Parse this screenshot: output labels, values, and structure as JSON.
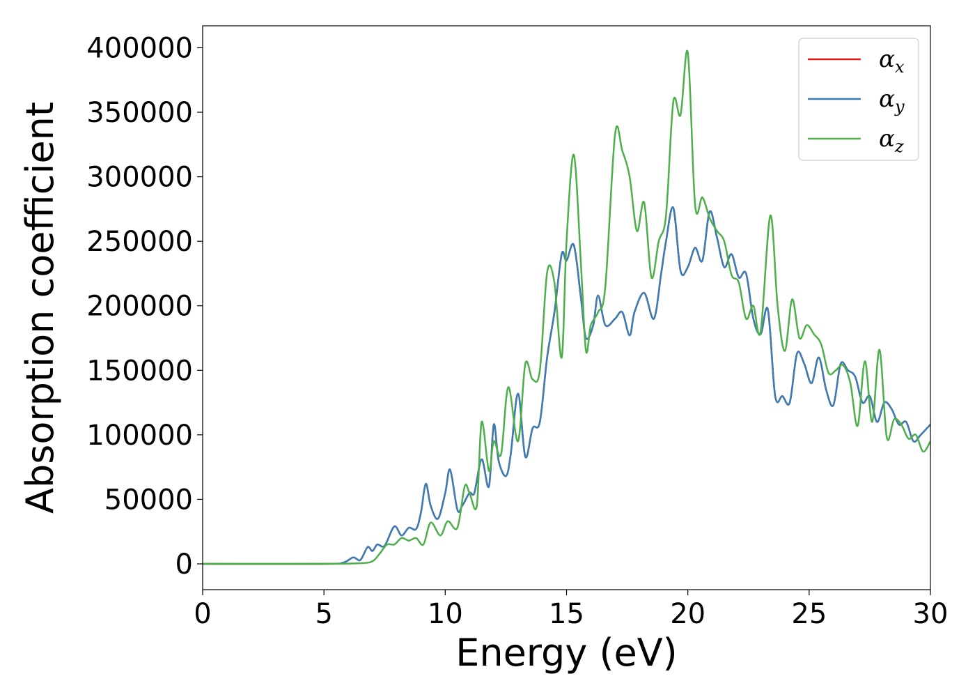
{
  "chart_data": {
    "type": "line",
    "title": "",
    "xlabel": "Energy (eV)",
    "ylabel": "Absorption coefficient",
    "xlim": [
      0,
      30
    ],
    "ylim": [
      -20000,
      417000
    ],
    "xticks": [
      0,
      5,
      10,
      15,
      20,
      25,
      30
    ],
    "yticks": [
      0,
      50000,
      100000,
      150000,
      200000,
      250000,
      300000,
      350000,
      400000
    ],
    "grid": false,
    "legend_position": "top-right",
    "series": [
      {
        "name": "α_x",
        "name_main": "α",
        "name_sub": "x",
        "color": "#e41a1c",
        "x": [
          0,
          5,
          5.8,
          6.2,
          6.5,
          6.8,
          7.0,
          7.2,
          7.5,
          7.9,
          8.2,
          8.5,
          8.8,
          9.0,
          9.2,
          9.4,
          9.7,
          10.0,
          10.2,
          10.5,
          10.7,
          11.0,
          11.2,
          11.5,
          11.8,
          12.0,
          12.2,
          12.5,
          12.7,
          13.0,
          13.3,
          13.6,
          13.9,
          14.2,
          14.5,
          14.8,
          15.0,
          15.3,
          15.6,
          15.8,
          16.1,
          16.3,
          16.6,
          17.0,
          17.3,
          17.6,
          17.8,
          18.2,
          18.6,
          18.9,
          19.1,
          19.4,
          19.7,
          20.0,
          20.3,
          20.6,
          20.9,
          21.2,
          21.5,
          21.8,
          22.1,
          22.4,
          22.7,
          23.0,
          23.3,
          23.6,
          23.9,
          24.2,
          24.5,
          24.8,
          25.1,
          25.4,
          25.7,
          26.0,
          26.3,
          26.6,
          26.9,
          27.2,
          27.5,
          27.8,
          28.1,
          28.4,
          28.7,
          29.0,
          29.3,
          29.6,
          30.0
        ],
        "values": [
          0,
          0,
          1000,
          5000,
          3000,
          13000,
          10000,
          15000,
          14000,
          29000,
          22000,
          28000,
          27000,
          40000,
          62000,
          45000,
          35000,
          55000,
          73000,
          42000,
          45000,
          55000,
          55000,
          81000,
          60000,
          108000,
          80000,
          68000,
          85000,
          132000,
          83000,
          105000,
          110000,
          160000,
          195000,
          240000,
          235000,
          247000,
          205000,
          175000,
          185000,
          208000,
          185000,
          190000,
          195000,
          177000,
          195000,
          210000,
          190000,
          225000,
          250000,
          276000,
          227000,
          230000,
          245000,
          235000,
          273000,
          253000,
          230000,
          240000,
          222000,
          225000,
          190000,
          178000,
          197000,
          130000,
          130000,
          125000,
          163000,
          155000,
          140000,
          160000,
          135000,
          123000,
          155000,
          150000,
          145000,
          125000,
          130000,
          110000,
          125000,
          120000,
          108000,
          110000,
          95000,
          100000,
          108000
        ]
      },
      {
        "name": "α_y",
        "name_main": "α",
        "name_sub": "y",
        "color": "#377eb8",
        "x": [
          0,
          5,
          5.8,
          6.2,
          6.5,
          6.8,
          7.0,
          7.2,
          7.5,
          7.9,
          8.2,
          8.5,
          8.8,
          9.0,
          9.2,
          9.4,
          9.7,
          10.0,
          10.2,
          10.5,
          10.7,
          11.0,
          11.2,
          11.5,
          11.8,
          12.0,
          12.2,
          12.5,
          12.7,
          13.0,
          13.3,
          13.6,
          13.9,
          14.2,
          14.5,
          14.8,
          15.0,
          15.3,
          15.6,
          15.8,
          16.1,
          16.3,
          16.6,
          17.0,
          17.3,
          17.6,
          17.8,
          18.2,
          18.6,
          18.9,
          19.1,
          19.4,
          19.7,
          20.0,
          20.3,
          20.6,
          20.9,
          21.2,
          21.5,
          21.8,
          22.1,
          22.4,
          22.7,
          23.0,
          23.3,
          23.6,
          23.9,
          24.2,
          24.5,
          24.8,
          25.1,
          25.4,
          25.7,
          26.0,
          26.3,
          26.6,
          26.9,
          27.2,
          27.5,
          27.8,
          28.1,
          28.4,
          28.7,
          29.0,
          29.3,
          29.6,
          30.0
        ],
        "values": [
          0,
          0,
          1000,
          5000,
          3000,
          13000,
          10000,
          15000,
          14000,
          29000,
          22000,
          28000,
          27000,
          40000,
          62000,
          45000,
          35000,
          55000,
          73000,
          42000,
          45000,
          55000,
          55000,
          81000,
          60000,
          108000,
          80000,
          68000,
          85000,
          132000,
          83000,
          105000,
          110000,
          160000,
          195000,
          240000,
          235000,
          247000,
          205000,
          175000,
          185000,
          208000,
          185000,
          190000,
          195000,
          177000,
          195000,
          210000,
          190000,
          225000,
          250000,
          276000,
          227000,
          230000,
          245000,
          235000,
          273000,
          253000,
          230000,
          240000,
          222000,
          225000,
          190000,
          178000,
          197000,
          130000,
          130000,
          125000,
          163000,
          155000,
          140000,
          160000,
          135000,
          123000,
          155000,
          150000,
          145000,
          125000,
          130000,
          110000,
          125000,
          120000,
          108000,
          110000,
          95000,
          100000,
          108000
        ]
      },
      {
        "name": "α_z",
        "name_main": "α",
        "name_sub": "z",
        "color": "#4daf4a",
        "x": [
          0,
          5,
          6.5,
          7.0,
          7.3,
          7.6,
          7.9,
          8.2,
          8.5,
          8.8,
          9.1,
          9.4,
          9.8,
          10.1,
          10.5,
          10.8,
          11.0,
          11.3,
          11.5,
          11.8,
          12.0,
          12.3,
          12.6,
          13.0,
          13.3,
          13.6,
          13.9,
          14.2,
          14.5,
          14.8,
          15.0,
          15.3,
          15.6,
          15.8,
          16.0,
          16.3,
          16.6,
          17.0,
          17.3,
          17.6,
          17.9,
          18.2,
          18.5,
          18.8,
          19.1,
          19.4,
          19.7,
          20.0,
          20.3,
          20.6,
          20.9,
          21.2,
          21.5,
          21.8,
          22.1,
          22.4,
          22.7,
          23.0,
          23.4,
          23.7,
          24.0,
          24.3,
          24.6,
          24.9,
          25.2,
          25.5,
          25.8,
          26.1,
          26.4,
          26.7,
          27.0,
          27.3,
          27.6,
          27.9,
          28.2,
          28.5,
          28.8,
          29.1,
          29.4,
          29.7,
          30.0
        ],
        "values": [
          0,
          0,
          500,
          2000,
          8000,
          15000,
          15000,
          20000,
          18000,
          20000,
          15000,
          32000,
          22000,
          33000,
          28000,
          60000,
          55000,
          45000,
          110000,
          72000,
          95000,
          85000,
          137000,
          95000,
          155000,
          143000,
          150000,
          226000,
          218000,
          160000,
          250000,
          317000,
          230000,
          165000,
          185000,
          195000,
          215000,
          333000,
          320000,
          300000,
          258000,
          280000,
          222000,
          250000,
          270000,
          358000,
          348000,
          396000,
          278000,
          284000,
          268000,
          258000,
          250000,
          224000,
          218000,
          190000,
          200000,
          180000,
          270000,
          200000,
          165000,
          205000,
          175000,
          185000,
          178000,
          170000,
          148000,
          150000,
          154000,
          140000,
          107000,
          157000,
          110000,
          166000,
          98000,
          112000,
          108000,
          97000,
          100000,
          87000,
          95000
        ]
      }
    ]
  }
}
